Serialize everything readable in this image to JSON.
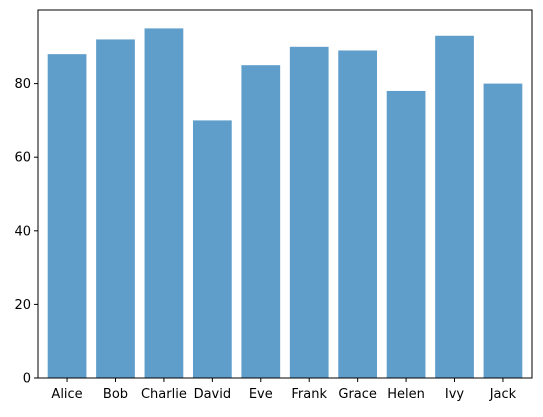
{
  "chart_data": {
    "type": "bar",
    "categories": [
      "Alice",
      "Bob",
      "Charlie",
      "David",
      "Eve",
      "Frank",
      "Grace",
      "Helen",
      "Ivy",
      "Jack"
    ],
    "values": [
      88,
      92,
      95,
      70,
      85,
      90,
      89,
      78,
      93,
      80
    ],
    "title": "",
    "xlabel": "",
    "ylabel": "",
    "ylim": [
      0,
      100
    ],
    "yticks": [
      0,
      20,
      40,
      60,
      80
    ],
    "grid": false,
    "bar_color": "#5f9ecb"
  }
}
